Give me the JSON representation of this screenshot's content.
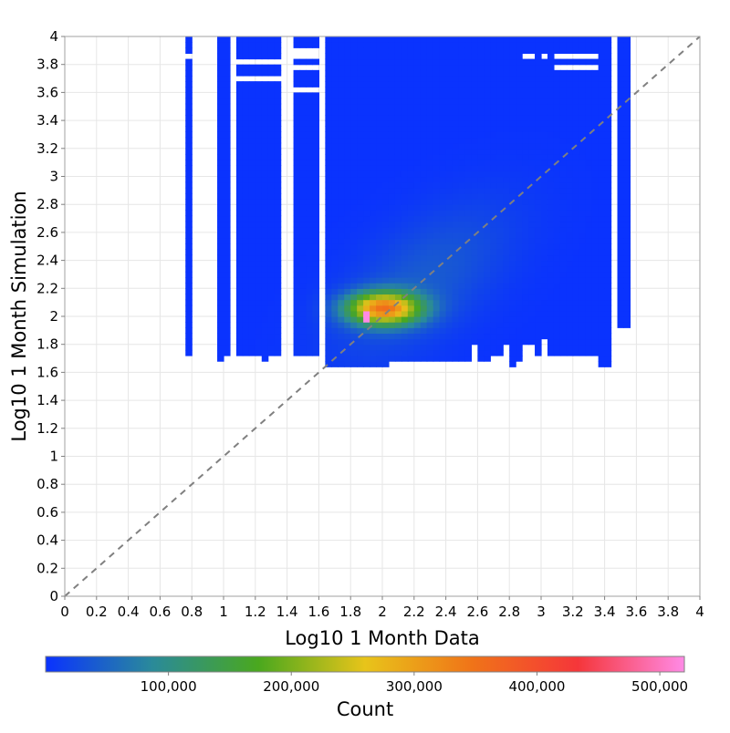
{
  "chart_data": {
    "type": "heatmap",
    "xlabel": "Log10 1 Month Data",
    "ylabel": "Log10 1 Month Simulation",
    "xlim": [
      0,
      4
    ],
    "ylim": [
      0,
      4
    ],
    "x_ticks": [
      "0",
      "0.2",
      "0.4",
      "0.6",
      "0.8",
      "1",
      "1.2",
      "1.4",
      "1.6",
      "1.8",
      "2",
      "2.2",
      "2.4",
      "2.6",
      "2.8",
      "3",
      "3.2",
      "3.4",
      "3.6",
      "3.8",
      "4"
    ],
    "y_ticks": [
      "0",
      "0.2",
      "0.4",
      "0.6",
      "0.8",
      "1",
      "1.2",
      "1.4",
      "1.6",
      "1.8",
      "2",
      "2.2",
      "2.4",
      "2.6",
      "2.8",
      "3",
      "3.2",
      "3.4",
      "3.6",
      "3.8",
      "4"
    ],
    "grid": true,
    "diagonal_reference_line": "y = x, dashed grey",
    "colorbar": {
      "label": "Count",
      "ticks": [
        "100,000",
        "200,000",
        "300,000",
        "400,000",
        "500,000"
      ],
      "tick_values": [
        100000,
        200000,
        300000,
        400000,
        500000
      ],
      "range": [
        0,
        520000
      ],
      "colors": [
        "#0a32ff",
        "#2a8a9a",
        "#4aa81e",
        "#e8c41a",
        "#f07418",
        "#f5363a",
        "#ff8ae6"
      ]
    },
    "bin_size": 0.04,
    "background_count": 500,
    "columns": [
      {
        "x": [
          0.76,
          0.8
        ],
        "y": [
          1.74,
          4.0
        ],
        "gaps": [
          [
            3.86,
            3.89
          ]
        ]
      },
      {
        "x": [
          0.95,
          1.01
        ],
        "y": [
          1.7,
          4.0
        ]
      },
      {
        "x": [
          1.01,
          1.06
        ],
        "y": [
          1.74,
          4.0
        ]
      },
      {
        "x": [
          1.1,
          1.35
        ],
        "y": [
          1.74,
          4.0
        ],
        "gaps": [
          [
            3.7,
            3.74
          ],
          [
            3.8,
            3.84
          ]
        ]
      },
      {
        "x": [
          1.23,
          1.29
        ],
        "y": [
          1.7,
          1.74
        ]
      },
      {
        "x": [
          1.45,
          1.6
        ],
        "y": [
          1.74,
          4.0
        ],
        "gaps": [
          [
            3.9,
            3.94
          ],
          [
            3.86,
            3.89
          ],
          [
            3.76,
            3.8
          ],
          [
            3.6,
            3.64
          ]
        ]
      },
      {
        "x": [
          1.65,
          2.05
        ],
        "y": [
          1.64,
          4.0
        ]
      },
      {
        "x": [
          2.05,
          2.55
        ],
        "y": [
          1.7,
          4.0
        ]
      },
      {
        "x": [
          2.55,
          2.65
        ],
        "y": [
          1.8,
          4.0
        ]
      },
      {
        "x": [
          2.61,
          2.69
        ],
        "y": [
          1.7,
          1.8
        ]
      },
      {
        "x": [
          2.65,
          2.75
        ],
        "y": [
          1.74,
          4.0
        ]
      },
      {
        "x": [
          2.75,
          2.9
        ],
        "y": [
          1.8,
          4.0
        ]
      },
      {
        "x": [
          2.79,
          2.84
        ],
        "y": [
          1.64,
          1.8
        ]
      },
      {
        "x": [
          2.84,
          2.89
        ],
        "y": [
          1.7,
          1.8
        ]
      },
      {
        "x": [
          2.9,
          2.95
        ],
        "y": [
          1.8,
          4.0
        ],
        "gaps": [
          [
            3.86,
            3.89
          ]
        ]
      },
      {
        "x": [
          2.95,
          3.0
        ],
        "y": [
          1.74,
          4.0
        ]
      },
      {
        "x": [
          3.0,
          3.05
        ],
        "y": [
          1.84,
          4.0
        ],
        "gaps": [
          [
            3.86,
            3.89
          ]
        ]
      },
      {
        "x": [
          3.05,
          3.1
        ],
        "y": [
          1.74,
          4.0
        ]
      },
      {
        "x": [
          3.1,
          3.35
        ],
        "y": [
          1.74,
          4.0
        ],
        "gaps": [
          [
            3.86,
            3.89
          ],
          [
            3.76,
            3.8
          ]
        ]
      },
      {
        "x": [
          3.35,
          3.45
        ],
        "y": [
          1.64,
          2.0
        ]
      },
      {
        "x": [
          3.35,
          3.45
        ],
        "y": [
          2.0,
          4.0
        ]
      },
      {
        "x": [
          3.5,
          3.55
        ],
        "y": [
          1.94,
          4.0
        ]
      }
    ],
    "hotspot": {
      "x_center": 2.01,
      "y_center": 2.06,
      "x_spread": 0.16,
      "y_spread": 0.08,
      "peak_count": 520000,
      "peak_x": 1.92,
      "peak_y": 2.02
    }
  }
}
